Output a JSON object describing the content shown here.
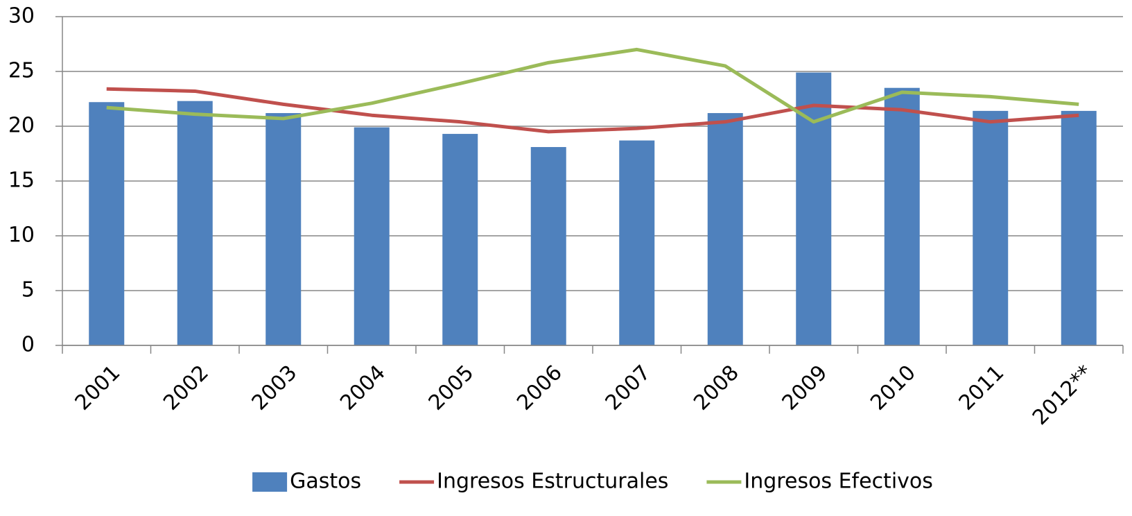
{
  "chart_data": {
    "type": "combo",
    "categories": [
      "2001",
      "2002",
      "2003",
      "2004",
      "2005",
      "2006",
      "2007",
      "2008",
      "2009",
      "2010",
      "2011",
      "2012**"
    ],
    "series": [
      {
        "name": "Gastos",
        "type": "bar",
        "color": "#4f81bd",
        "values": [
          22.2,
          22.3,
          21.2,
          19.9,
          19.3,
          18.1,
          18.7,
          21.2,
          24.9,
          23.5,
          21.4,
          21.4
        ]
      },
      {
        "name": "Ingresos Estructurales",
        "type": "line",
        "color": "#c0504d",
        "values": [
          23.4,
          23.2,
          22.0,
          21.0,
          20.4,
          19.5,
          19.8,
          20.4,
          21.9,
          21.5,
          20.4,
          21.0
        ]
      },
      {
        "name": "Ingresos Efectivos",
        "type": "line",
        "color": "#9bbb59",
        "values": [
          21.7,
          21.1,
          20.7,
          22.1,
          23.9,
          25.8,
          27.0,
          25.5,
          20.4,
          23.1,
          22.7,
          22.0
        ]
      }
    ],
    "ylim": [
      0,
      30
    ],
    "yticks": [
      0,
      5,
      10,
      15,
      20,
      25,
      30
    ],
    "grid": true,
    "legend": "bottom"
  }
}
